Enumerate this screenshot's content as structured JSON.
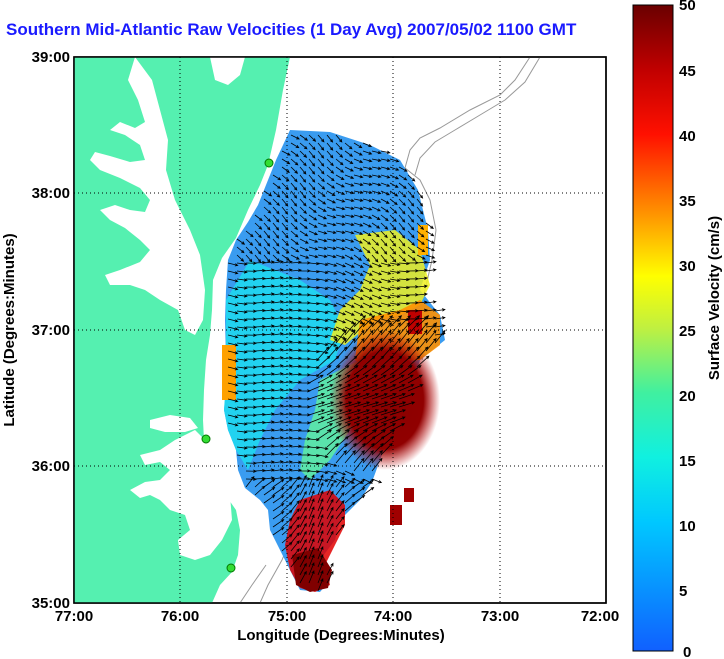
{
  "title": "Southern Mid-Atlantic Raw Velocities (1 Day Avg) 2007/05/02 1100 GMT",
  "map": {
    "x_axis": {
      "label": "Longitude (Degrees:Minutes)",
      "ticks": [
        "77:00",
        "76:00",
        "75:00",
        "74:00",
        "73:00",
        "72:00"
      ]
    },
    "y_axis": {
      "label": "Latitude (Degrees:Minutes)",
      "ticks": [
        "39:00",
        "38:00",
        "37:00",
        "36:00",
        "35:00"
      ]
    },
    "grid": "dotted",
    "land_color": "#55f0b0",
    "arrow_color": "#000000",
    "contour_color": "#999999",
    "station_color": "#33dd33",
    "stations": 3
  },
  "colorbar": {
    "label": "Surface Velocity (cm/s)",
    "range": [
      0,
      50
    ],
    "ticks": [
      "50",
      "45",
      "40",
      "35",
      "30",
      "25",
      "20",
      "15",
      "10",
      "5",
      "0"
    ],
    "colors": [
      "#1060ff",
      "#00e0ff",
      "#20f0a0",
      "#ffff00",
      "#ff8000",
      "#ff0000",
      "#7a0000"
    ]
  }
}
